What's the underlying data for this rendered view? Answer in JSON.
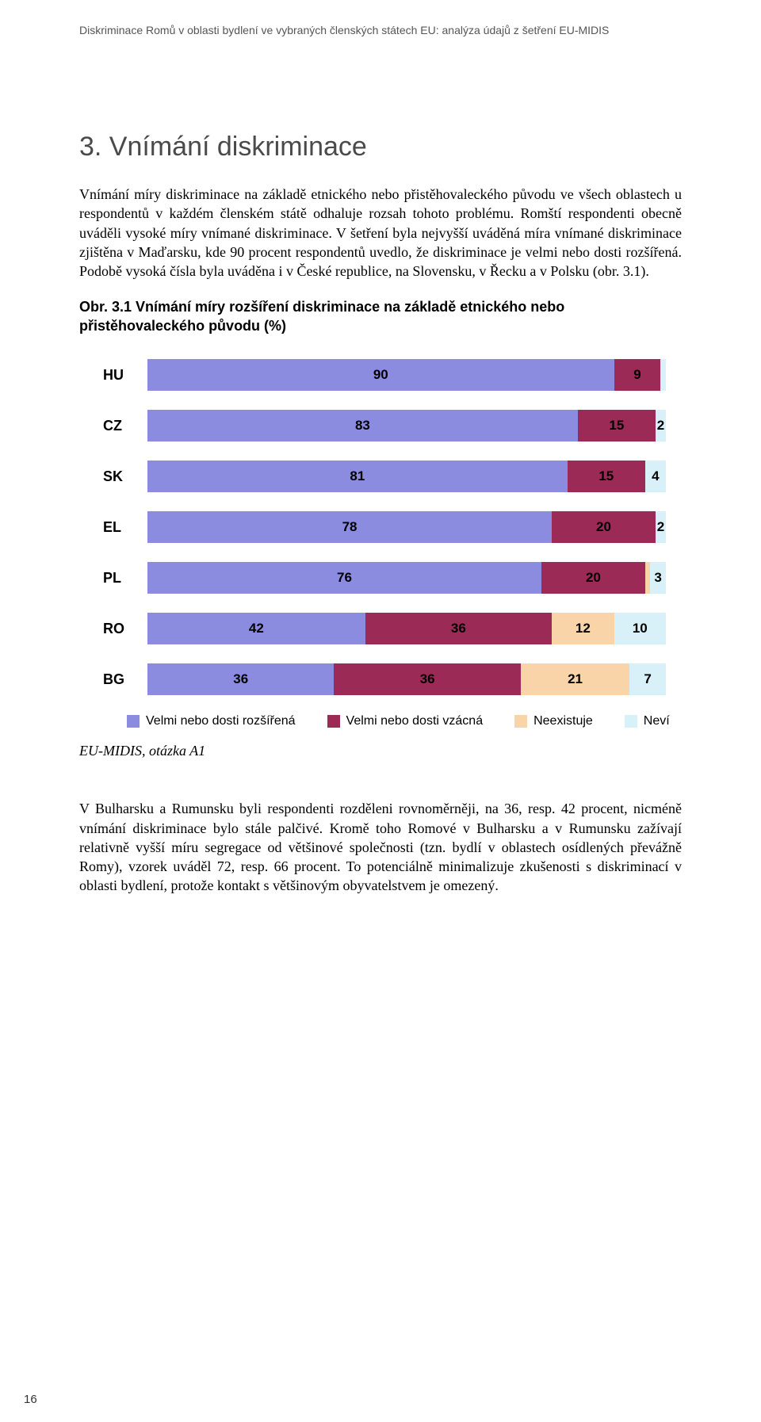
{
  "running_head": "Diskriminace Romů v oblasti bydlení ve vybraných členských státech EU: analýza údajů z šetření EU-MIDIS",
  "section_title": "3.     Vnímání diskriminace",
  "para1": "Vnímání míry diskriminace na základě etnického nebo přistěhovaleckého původu ve všech oblastech u respondentů v každém členském státě odhaluje rozsah tohoto problému. Romští respondenti obecně uváděli vysoké míry vnímané diskriminace. V šetření byla nejvyšší uváděná míra vnímané diskriminace zjištěna v Maďarsku, kde 90 procent respondentů uvedlo, že diskriminace je velmi nebo dosti rozšířená. Podobě vysoká čísla byla uváděna i v České republice, na Slovensku, v Řecku a v Polsku (obr. 3.1).",
  "fig_caption": "Obr. 3.1 Vnímání míry rozšíření diskriminace na základě etnického nebo přistěhovaleckého původu (%)",
  "chart": {
    "type": "stacked-bar-horizontal",
    "colors": {
      "widespread": "#8b8be0",
      "rare": "#9c2a57",
      "nonexistent": "#f8d4a8",
      "dontknow": "#d8f0f8"
    },
    "legend": {
      "widespread": "Velmi nebo dosti rozšířená",
      "rare": "Velmi nebo dosti vzácná",
      "nonexistent": "Neexistuje",
      "dontknow": "Neví"
    },
    "rows": [
      {
        "label": "HU",
        "values": [
          90,
          9,
          0,
          1
        ],
        "show": [
          "90",
          "9",
          "",
          ""
        ]
      },
      {
        "label": "CZ",
        "values": [
          83,
          15,
          0,
          2
        ],
        "show": [
          "83",
          "15",
          "",
          "2"
        ]
      },
      {
        "label": "SK",
        "values": [
          81,
          15,
          0,
          4
        ],
        "show": [
          "81",
          "15",
          "",
          "4"
        ]
      },
      {
        "label": "EL",
        "values": [
          78,
          20,
          0,
          2
        ],
        "show": [
          "78",
          "20",
          "",
          "2"
        ]
      },
      {
        "label": "PL",
        "values": [
          76,
          20,
          1,
          3
        ],
        "show": [
          "76",
          "20",
          "",
          "3"
        ]
      },
      {
        "label": "RO",
        "values": [
          42,
          36,
          12,
          10
        ],
        "show": [
          "42",
          "36",
          "12",
          "10"
        ]
      },
      {
        "label": "BG",
        "values": [
          36,
          36,
          21,
          7
        ],
        "show": [
          "36",
          "36",
          "21",
          "7"
        ]
      }
    ]
  },
  "source": "EU-MIDIS, otázka A1",
  "para2": "V Bulharsku a Rumunsku byli respondenti rozděleni rovnoměrněji, na 36, resp. 42 procent, nicméně vnímání diskriminace bylo stále palčivé. Kromě toho Romové v Bulharsku a v Rumunsku zažívají relativně vyšší míru segregace od většinové společnosti (tzn. bydlí v oblastech osídlených převážně Romy), vzorek uváděl 72, resp. 66 procent. To potenciálně minimalizuje zkušenosti s diskriminací v oblasti bydlení, protože kontakt s většinovým obyvatelstvem je omezený.",
  "page_number": "16"
}
